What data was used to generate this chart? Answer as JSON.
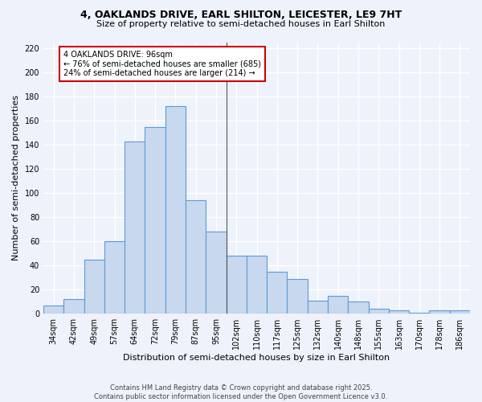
{
  "title1": "4, OAKLANDS DRIVE, EARL SHILTON, LEICESTER, LE9 7HT",
  "title2": "Size of property relative to semi-detached houses in Earl Shilton",
  "xlabel": "Distribution of semi-detached houses by size in Earl Shilton",
  "ylabel": "Number of semi-detached properties",
  "categories": [
    "34sqm",
    "42sqm",
    "49sqm",
    "57sqm",
    "64sqm",
    "72sqm",
    "79sqm",
    "87sqm",
    "95sqm",
    "102sqm",
    "110sqm",
    "117sqm",
    "125sqm",
    "132sqm",
    "140sqm",
    "148sqm",
    "155sqm",
    "163sqm",
    "170sqm",
    "178sqm",
    "186sqm"
  ],
  "values": [
    7,
    12,
    45,
    60,
    143,
    155,
    172,
    94,
    68,
    48,
    48,
    35,
    29,
    11,
    15,
    10,
    4,
    3,
    1,
    3,
    3
  ],
  "bar_color": "#c8d8ef",
  "bar_edge_color": "#5b9bd5",
  "annotation_text": "4 OAKLANDS DRIVE: 96sqm\n← 76% of semi-detached houses are smaller (685)\n24% of semi-detached houses are larger (214) →",
  "annotation_box_color": "#ffffff",
  "annotation_edge_color": "#cc0000",
  "ylim": [
    0,
    225
  ],
  "yticks": [
    0,
    20,
    40,
    60,
    80,
    100,
    120,
    140,
    160,
    180,
    200,
    220
  ],
  "footer1": "Contains HM Land Registry data © Crown copyright and database right 2025.",
  "footer2": "Contains public sector information licensed under the Open Government Licence v3.0.",
  "bg_color": "#eef2fa",
  "grid_color": "#ffffff",
  "title1_fontsize": 9,
  "title2_fontsize": 8,
  "ylabel_fontsize": 8,
  "xlabel_fontsize": 8,
  "tick_fontsize": 7,
  "footer_fontsize": 6,
  "annot_fontsize": 7,
  "property_bar_index": 8,
  "line_color": "#555555"
}
